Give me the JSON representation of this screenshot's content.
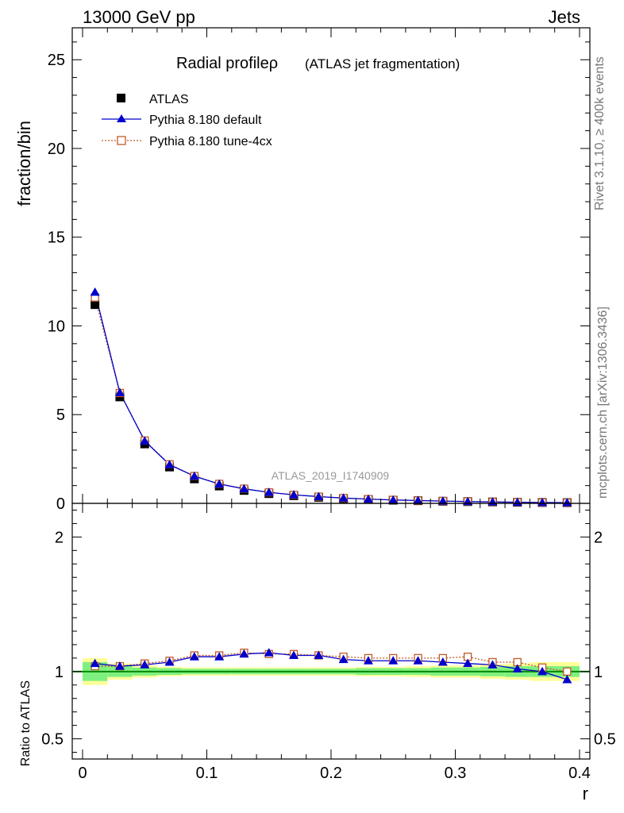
{
  "header": {
    "left": "13000 GeV pp",
    "right": "Jets"
  },
  "side": {
    "rivet": "Rivet 3.1.10, ≥ 400k events",
    "mcplots": "mcplots.cern.ch [arXiv:1306.3436]"
  },
  "chart_data": {
    "type": "scatter",
    "title": "Radial profileρ",
    "subtitle": "(ATLAS jet fragmentation)",
    "analysis": "ATLAS_2019_I1740909",
    "xlabel": "r",
    "ylabel": "fraction/bin",
    "ratio_ylabel": "Ratio to ATLAS",
    "xlim": [
      -0.0025,
      0.4
    ],
    "ylim": [
      0,
      26.8
    ],
    "ratio_ylim": [
      0.35,
      2.25
    ],
    "x_ticks": [
      "0",
      "0.1",
      "0.2",
      "0.3",
      "0.4"
    ],
    "y_ticks": [
      "0",
      "5",
      "10",
      "15",
      "20",
      "25"
    ],
    "ratio_ticks": [
      "0.5",
      "1",
      "2"
    ],
    "x": [
      0.01,
      0.03,
      0.05,
      0.07,
      0.09,
      0.11,
      0.13,
      0.15,
      0.17,
      0.19,
      0.21,
      0.23,
      0.25,
      0.27,
      0.29,
      0.31,
      0.33,
      0.35,
      0.37,
      0.39
    ],
    "series": [
      {
        "name": "ATLAS",
        "color": "#000000",
        "marker": "square",
        "values": [
          11.2,
          6.0,
          3.35,
          2.05,
          1.38,
          0.98,
          0.73,
          0.55,
          0.43,
          0.34,
          0.27,
          0.22,
          0.18,
          0.15,
          0.12,
          0.1,
          0.08,
          0.06,
          0.05,
          0.04
        ]
      },
      {
        "name": "Pythia 8.180 default",
        "color": "#0000cc",
        "marker": "triangle",
        "values": [
          11.9,
          6.24,
          3.52,
          2.18,
          1.53,
          1.09,
          0.82,
          0.62,
          0.48,
          0.38,
          0.3,
          0.24,
          0.19,
          0.16,
          0.13,
          0.1,
          0.08,
          0.06,
          0.05,
          0.04
        ],
        "ratio": [
          1.06,
          1.04,
          1.05,
          1.07,
          1.11,
          1.11,
          1.13,
          1.14,
          1.12,
          1.12,
          1.09,
          1.08,
          1.08,
          1.08,
          1.07,
          1.06,
          1.05,
          1.02,
          1.0,
          0.94
        ]
      },
      {
        "name": "Pythia 8.180 tune-4cx",
        "color": "#c05a28",
        "marker": "open-square",
        "values": [
          11.6,
          6.22,
          3.54,
          2.2,
          1.54,
          1.1,
          0.83,
          0.62,
          0.48,
          0.38,
          0.3,
          0.24,
          0.2,
          0.16,
          0.13,
          0.11,
          0.08,
          0.07,
          0.05,
          0.04
        ],
        "ratio": [
          1.04,
          1.04,
          1.06,
          1.08,
          1.12,
          1.12,
          1.14,
          1.13,
          1.13,
          1.12,
          1.11,
          1.1,
          1.1,
          1.1,
          1.1,
          1.11,
          1.07,
          1.07,
          1.03,
          1.0
        ]
      }
    ],
    "band_green": [
      0.07,
      0.04,
      0.03,
      0.025,
      0.02,
      0.02,
      0.02,
      0.02,
      0.02,
      0.02,
      0.02,
      0.025,
      0.025,
      0.025,
      0.03,
      0.03,
      0.035,
      0.04,
      0.04,
      0.04
    ],
    "band_yellow": [
      0.1,
      0.06,
      0.045,
      0.035,
      0.03,
      0.03,
      0.03,
      0.03,
      0.03,
      0.03,
      0.03,
      0.035,
      0.035,
      0.04,
      0.045,
      0.045,
      0.055,
      0.06,
      0.07,
      0.07
    ],
    "colors": {
      "green_band": "#7ff07f",
      "yellow_band": "#ffff99",
      "ratio_line": "#008800",
      "watermark": "#999999"
    }
  }
}
